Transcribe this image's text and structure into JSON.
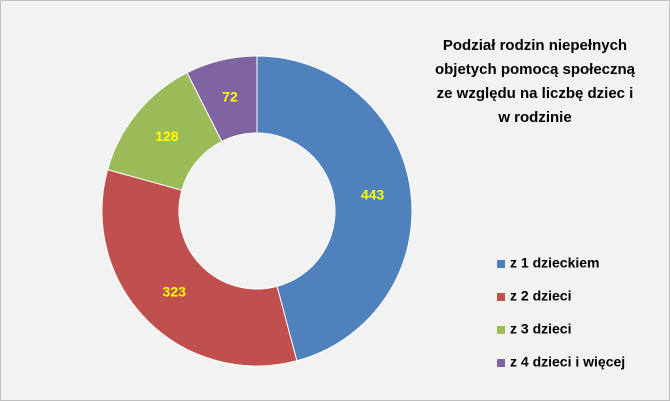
{
  "chart_data": {
    "type": "donut",
    "title": [
      "Podział rodzin niepełnych",
      "objetych pomocą społeczną",
      "ze względu na liczbę dziec i",
      "w rodzinie"
    ],
    "categories": [
      "z 1 dzieckiem",
      "z 2 dzieci",
      "z 3 dzieci",
      "z 4 dzieci i więcej"
    ],
    "values": [
      443,
      323,
      128,
      72
    ],
    "colors": [
      "#4f81bd",
      "#c0504d",
      "#9bbb59",
      "#8064a2"
    ],
    "legend": "right"
  }
}
